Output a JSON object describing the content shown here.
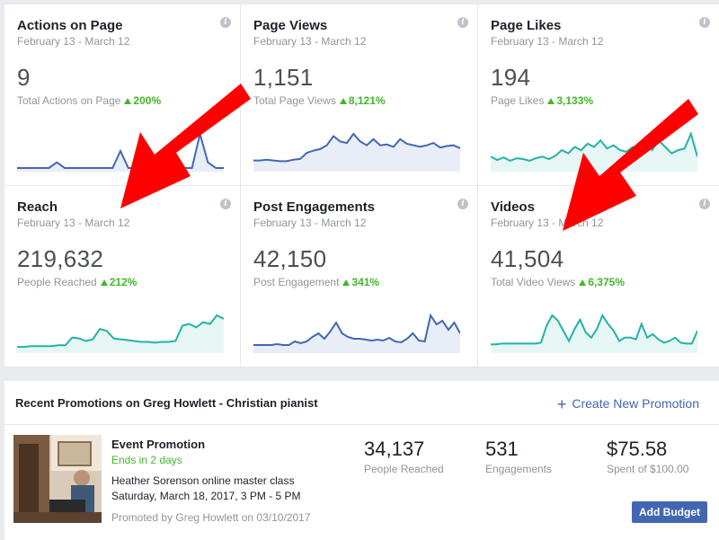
{
  "cards": [
    {
      "title": "Actions on Page",
      "date": "February 13 - March 12",
      "value": "9",
      "sub": "Total Actions on Page",
      "change": "200%",
      "color": "#4267b2",
      "spark": [
        0,
        0,
        0,
        0,
        0,
        1,
        0,
        0,
        0,
        0,
        0,
        0,
        0,
        3,
        0,
        0,
        0,
        0,
        0,
        0,
        0,
        0,
        0,
        6,
        1,
        0,
        0
      ]
    },
    {
      "title": "Page Views",
      "date": "February 13 - March 12",
      "value": "1,151",
      "sub": "Total Page Views",
      "change": "8,121%",
      "color": "#4267b2",
      "spark": [
        10,
        10,
        11,
        10,
        9,
        9,
        11,
        12,
        20,
        23,
        25,
        30,
        42,
        35,
        33,
        45,
        35,
        30,
        38,
        30,
        31,
        28,
        38,
        32,
        30,
        28,
        30,
        33,
        27,
        29,
        30,
        26
      ]
    },
    {
      "title": "Page Likes",
      "date": "February 13 - March 12",
      "value": "194",
      "sub": "Page Likes",
      "change": "3,133%",
      "color": "#23b3a6",
      "spark": [
        14,
        10,
        13,
        9,
        12,
        11,
        9,
        12,
        14,
        11,
        15,
        22,
        18,
        26,
        22,
        30,
        26,
        34,
        24,
        28,
        22,
        20,
        26,
        20,
        30,
        22,
        34,
        26,
        18,
        22,
        24,
        42,
        14
      ]
    },
    {
      "title": "Reach",
      "date": "February 13 - March 12",
      "value": "219,632",
      "sub": "People Reached",
      "change": "212%",
      "color": "#23b3a6",
      "spark": [
        3,
        3,
        4,
        4,
        4,
        4,
        5,
        5,
        14,
        13,
        10,
        12,
        24,
        22,
        13,
        12,
        11,
        10,
        9,
        9,
        8,
        9,
        9,
        10,
        28,
        30,
        26,
        32,
        30,
        40,
        36
      ]
    },
    {
      "title": "Post Engagements",
      "date": "February 13 - March 12",
      "value": "42,150",
      "sub": "Post Engagement",
      "change": "341%",
      "color": "#4267b2",
      "spark": [
        5,
        5,
        5,
        5,
        6,
        5,
        5,
        9,
        7,
        9,
        14,
        18,
        12,
        20,
        30,
        18,
        14,
        12,
        12,
        11,
        10,
        11,
        10,
        13,
        9,
        8,
        12,
        18,
        10,
        9,
        38,
        28,
        32,
        22,
        30,
        18
      ]
    },
    {
      "title": "Videos",
      "date": "February 13 - March 12",
      "value": "41,504",
      "sub": "Total Video Views",
      "change": "6,375%",
      "color": "#23b3a6",
      "spark": [
        6,
        6,
        7,
        7,
        7,
        7,
        7,
        7,
        7,
        8,
        28,
        40,
        34,
        22,
        10,
        24,
        35,
        20,
        14,
        24,
        40,
        30,
        22,
        10,
        14,
        14,
        12,
        30,
        14,
        18,
        12,
        8,
        10,
        14,
        8,
        7,
        7,
        22
      ]
    }
  ],
  "promo": {
    "header": "Recent Promotions on Greg Howlett - Christian pianist",
    "create_label": "Create New Promotion",
    "type": "Event Promotion",
    "ends": "Ends in 2 days",
    "event_name": "Heather Sorenson online master class",
    "event_date": "Saturday, March 18, 2017, 3 PM - 5 PM",
    "promoted_by": "Promoted by Greg Howlett on 03/10/2017",
    "metrics": [
      {
        "value": "34,137",
        "label": "People Reached"
      },
      {
        "value": "531",
        "label": "Engagements"
      },
      {
        "value": "$75.58",
        "label": "Spent of $100.00"
      }
    ],
    "add_budget_label": "Add Budget"
  },
  "icons": {
    "info": "info-icon",
    "plus": "plus-icon",
    "annotation_arrow": "red-arrow-annotation"
  },
  "colors": {
    "accent": "#4267b2",
    "positive": "#42b72a",
    "teal": "#23b3a6",
    "arrow": "#ff0000"
  }
}
